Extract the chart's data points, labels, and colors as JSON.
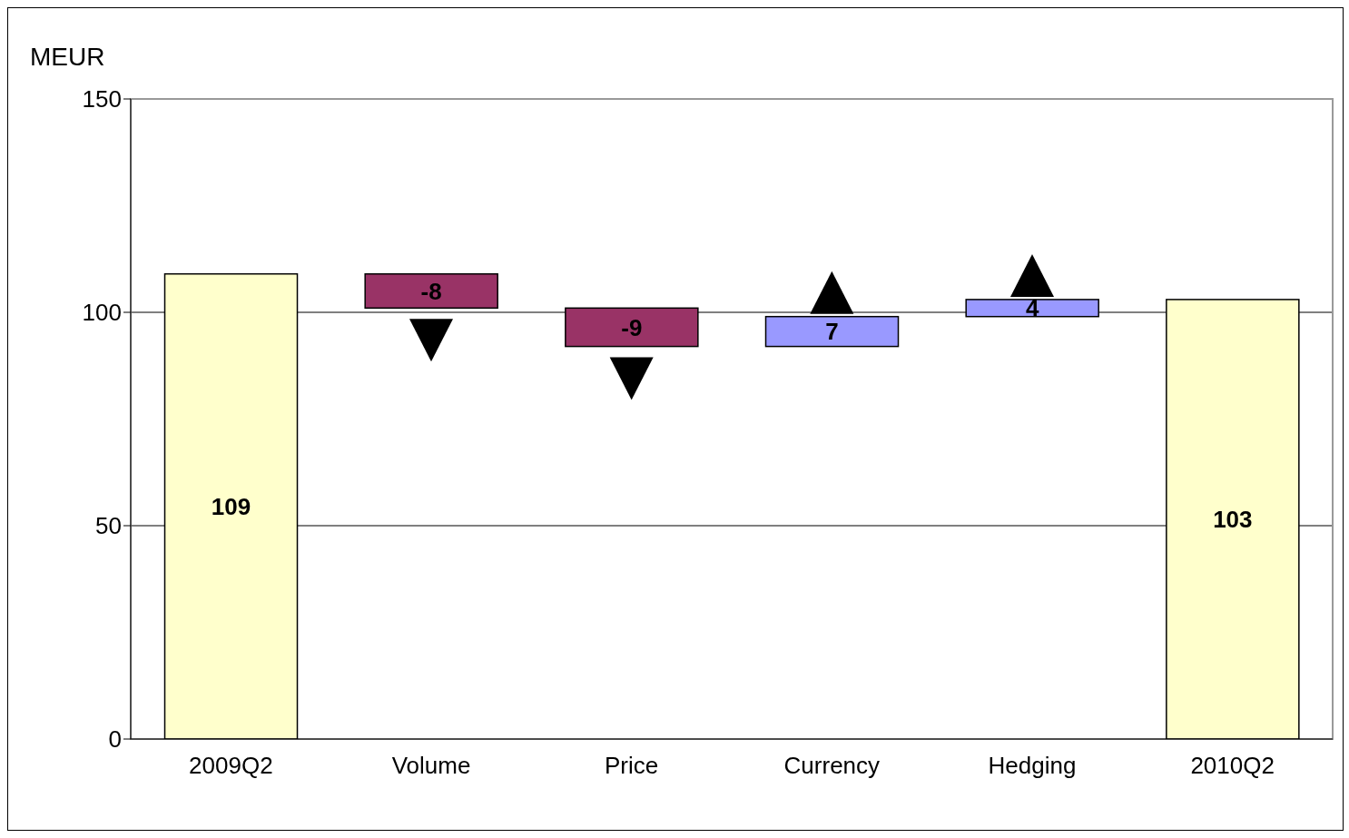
{
  "chart_data": {
    "type": "bar",
    "ylabel": "MEUR",
    "categories": [
      "2009Q2",
      "Volume",
      "Price",
      "Currency",
      "Hedging",
      "2010Q2"
    ],
    "values": [
      109,
      -8,
      -9,
      7,
      4,
      103
    ],
    "base": [
      0,
      109,
      101,
      92,
      99,
      0
    ],
    "colors": [
      "#ffffcc",
      "#993366",
      "#993366",
      "#9999ff",
      "#9999ff",
      "#ffffcc"
    ],
    "ylim": [
      0,
      150
    ],
    "yticks": [
      0,
      50,
      100,
      150
    ],
    "grid": "y",
    "data_labels": true
  }
}
